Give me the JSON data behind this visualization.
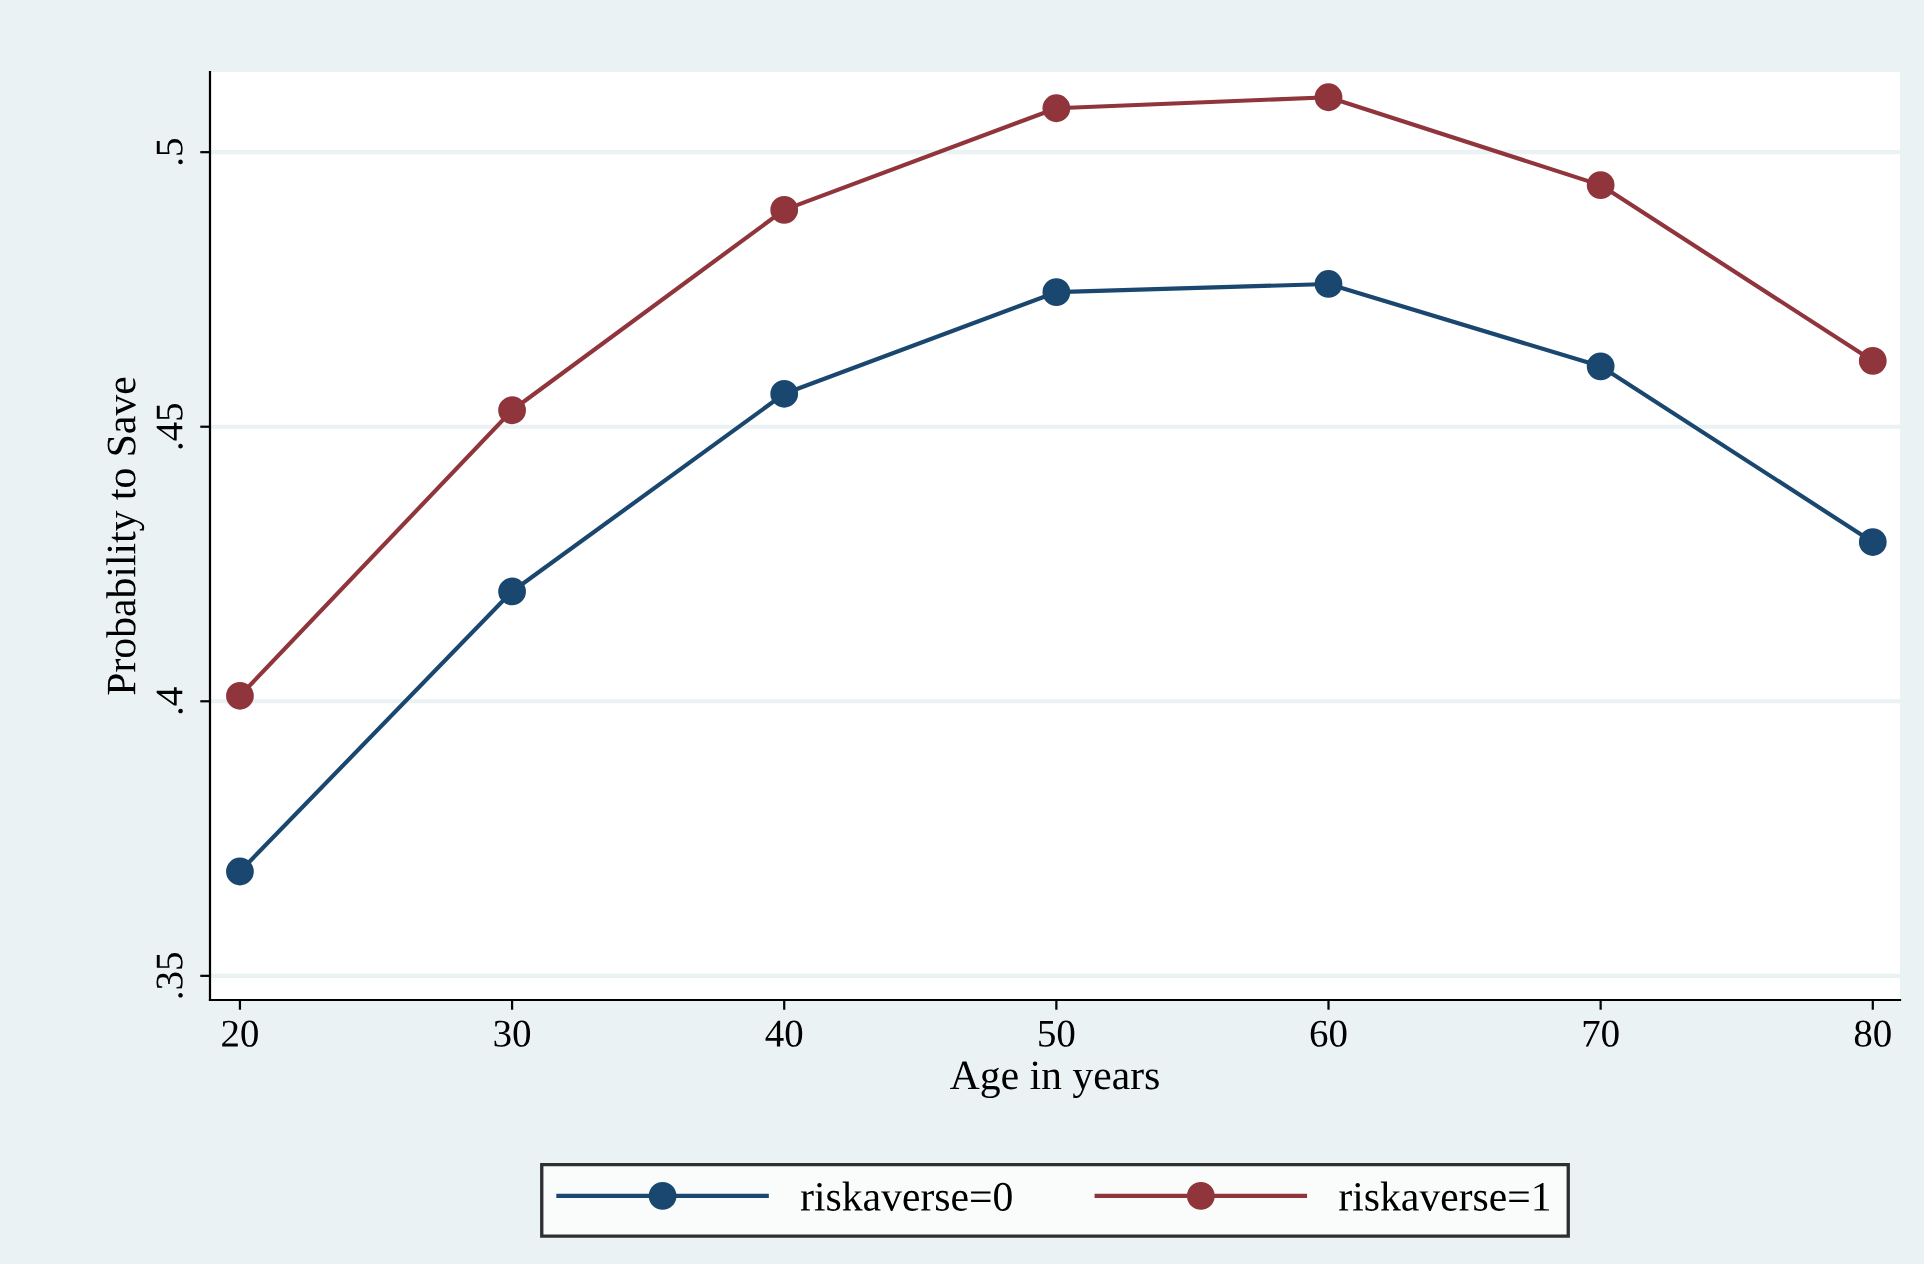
{
  "chart_data": {
    "type": "line",
    "xlabel": "Age in years",
    "ylabel": "Probability to Save",
    "x": [
      20,
      30,
      40,
      50,
      60,
      70,
      80
    ],
    "series": [
      {
        "name": "riskaverse=0",
        "color": "#1a476f",
        "values": [
          0.369,
          0.42,
          0.456,
          0.4745,
          0.476,
          0.461,
          0.429
        ]
      },
      {
        "name": "riskaverse=1",
        "color": "#90353b",
        "values": [
          0.401,
          0.453,
          0.4895,
          0.508,
          0.51,
          0.494,
          0.462
        ]
      }
    ],
    "xlim": [
      18.9,
      81.0
    ],
    "ylim": [
      0.3456,
      0.5146
    ],
    "xticks": [
      20,
      30,
      40,
      50,
      60,
      70,
      80
    ],
    "yticks": [
      {
        "value": 0.35,
        "label": ".35"
      },
      {
        "value": 0.4,
        "label": ".4"
      },
      {
        "value": 0.45,
        "label": ".45"
      },
      {
        "value": 0.5,
        "label": ".5"
      }
    ],
    "grid": "y",
    "legend": "bottom",
    "marker": "circle",
    "line_style": "solid"
  }
}
